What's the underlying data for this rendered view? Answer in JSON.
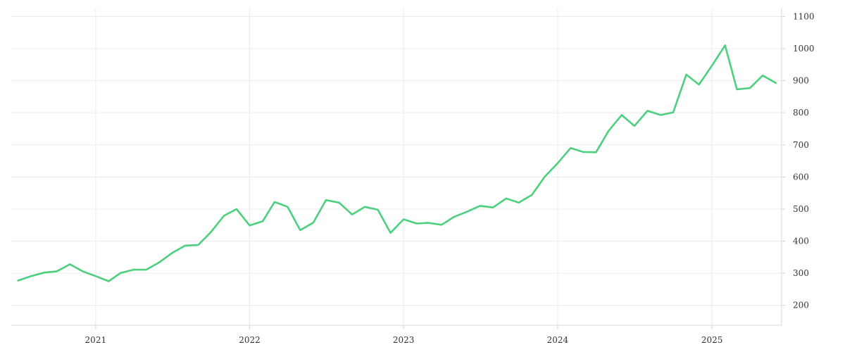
{
  "chart_data": {
    "type": "line",
    "title": "",
    "xlabel": "",
    "ylabel": "",
    "x_tick_labels": [
      "2021",
      "2022",
      "2023",
      "2024",
      "2025"
    ],
    "y_tick_labels": [
      "200",
      "300",
      "400",
      "500",
      "600",
      "700",
      "800",
      "900",
      "1000",
      "1100"
    ],
    "xlim": [
      "2020-06-15",
      "2025-06-15"
    ],
    "ylim": [
      138,
      1125
    ],
    "grid": true,
    "y_axis_side": "right",
    "series": [
      {
        "color": "#4cd07d",
        "points": [
          [
            "2020-07-01",
            277
          ],
          [
            "2020-08-01",
            291
          ],
          [
            "2020-09-01",
            302
          ],
          [
            "2020-10-01",
            306
          ],
          [
            "2020-11-01",
            328
          ],
          [
            "2020-12-01",
            306
          ],
          [
            "2021-01-01",
            291
          ],
          [
            "2021-02-01",
            275
          ],
          [
            "2021-03-01",
            301
          ],
          [
            "2021-04-01",
            311
          ],
          [
            "2021-05-01",
            311
          ],
          [
            "2021-06-01",
            334
          ],
          [
            "2021-07-01",
            363
          ],
          [
            "2021-08-01",
            386
          ],
          [
            "2021-09-01",
            388
          ],
          [
            "2021-10-01",
            428
          ],
          [
            "2021-11-01",
            479
          ],
          [
            "2021-12-01",
            500
          ],
          [
            "2022-01-01",
            449
          ],
          [
            "2022-02-01",
            462
          ],
          [
            "2022-03-01",
            522
          ],
          [
            "2022-04-01",
            507
          ],
          [
            "2022-05-01",
            434
          ],
          [
            "2022-06-01",
            458
          ],
          [
            "2022-07-01",
            528
          ],
          [
            "2022-08-01",
            520
          ],
          [
            "2022-09-01",
            483
          ],
          [
            "2022-10-01",
            507
          ],
          [
            "2022-11-01",
            498
          ],
          [
            "2022-12-01",
            426
          ],
          [
            "2023-01-01",
            468
          ],
          [
            "2023-02-01",
            455
          ],
          [
            "2023-03-01",
            457
          ],
          [
            "2023-04-01",
            451
          ],
          [
            "2023-05-01",
            476
          ],
          [
            "2023-06-01",
            492
          ],
          [
            "2023-07-01",
            510
          ],
          [
            "2023-08-01",
            505
          ],
          [
            "2023-09-01",
            533
          ],
          [
            "2023-10-01",
            520
          ],
          [
            "2023-11-01",
            544
          ],
          [
            "2023-12-01",
            600
          ],
          [
            "2024-01-01",
            643
          ],
          [
            "2024-02-01",
            690
          ],
          [
            "2024-03-01",
            678
          ],
          [
            "2024-04-01",
            677
          ],
          [
            "2024-05-01",
            744
          ],
          [
            "2024-06-01",
            793
          ],
          [
            "2024-07-01",
            759
          ],
          [
            "2024-08-01",
            806
          ],
          [
            "2024-09-01",
            793
          ],
          [
            "2024-10-01",
            801
          ],
          [
            "2024-11-01",
            919
          ],
          [
            "2024-12-01",
            888
          ],
          [
            "2025-01-01",
            947
          ],
          [
            "2025-02-01",
            1010
          ],
          [
            "2025-03-01",
            873
          ],
          [
            "2025-04-01",
            877
          ],
          [
            "2025-05-01",
            916
          ],
          [
            "2025-06-01",
            893
          ]
        ]
      }
    ]
  }
}
